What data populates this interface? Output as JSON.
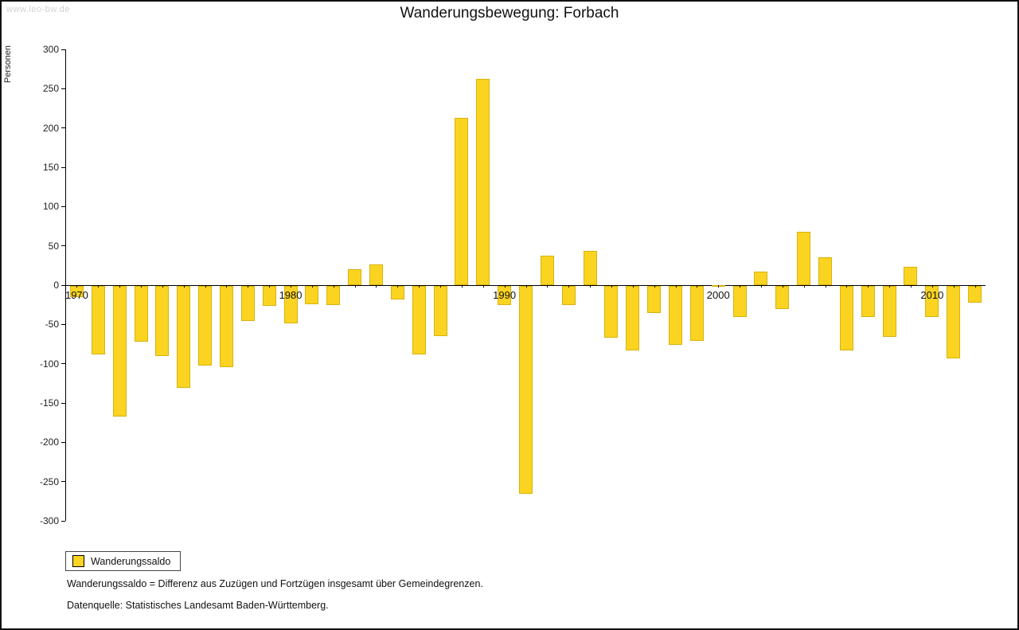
{
  "watermark": "www.leo-bw.de",
  "title": "Wanderungsbewegung: Forbach",
  "ylabel": "Personen",
  "legend": {
    "label": "Wanderungssaldo",
    "swatch_color": "#FAD420"
  },
  "footnotes": {
    "definition": "Wanderungssaldo = Differenz aus Zuzügen und Fortzügen insgesamt über Gemeindegrenzen.",
    "source": "Datenquelle: Statistisches Landesamt Baden-Württemberg."
  },
  "chart_data": {
    "type": "bar",
    "title": "Wanderungsbewegung: Forbach",
    "series_name": "Wanderungssaldo",
    "xlabel": "",
    "ylabel": "Personen",
    "bar_color": "#FAD420",
    "ylim": [
      -300,
      300
    ],
    "ytick_step": 50,
    "xtick_labels": [
      1970,
      1980,
      1990,
      2000,
      2010
    ],
    "grid": false,
    "legend_position": "bottom-left",
    "years": [
      1970,
      1971,
      1972,
      1973,
      1974,
      1975,
      1976,
      1977,
      1978,
      1979,
      1980,
      1981,
      1982,
      1983,
      1984,
      1985,
      1986,
      1987,
      1988,
      1989,
      1990,
      1991,
      1992,
      1993,
      1994,
      1995,
      1996,
      1997,
      1998,
      1999,
      2000,
      2001,
      2002,
      2003,
      2004,
      2005,
      2006,
      2007,
      2008,
      2009,
      2010,
      2011,
      2012
    ],
    "values": [
      -15,
      -88,
      -167,
      -71,
      -90,
      -130,
      -102,
      -104,
      -45,
      -26,
      -48,
      -24,
      -25,
      20,
      26,
      -18,
      -88,
      -64,
      213,
      263,
      -25,
      -265,
      37,
      -25,
      44,
      -66,
      -83,
      -35,
      -75,
      -70,
      0,
      -40,
      17,
      -30,
      68,
      35,
      -83,
      -40,
      -65,
      23,
      -40,
      -93,
      -22
    ]
  }
}
